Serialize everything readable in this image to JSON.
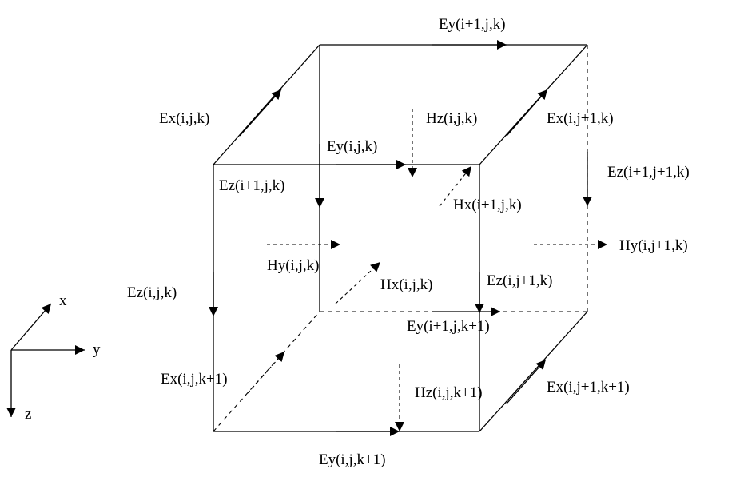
{
  "axes": {
    "x": "x",
    "y": "y",
    "z": "z"
  },
  "labels": {
    "ey_i1_j_k": "Ey(i+1,j,k)",
    "ex_i_j_k": "Ex(i,j,k)",
    "hz_i_j_k": "Hz(i,j,k)",
    "ex_i_j1_k": "Ex(i,j+1,k)",
    "ey_i_j_k": "Ey(i,j,k)",
    "ez_i1_j_k": "Ez(i+1,j,k)",
    "ez_i1_j1_k": "Ez(i+1,j+1,k)",
    "hx_i1_j_k": "Hx(i+1,j,k)",
    "hy_i_j1_k": "Hy(i,j+1,k)",
    "hy_i_j_k": "Hy(i,j,k)",
    "hx_i_j_k": "Hx(i,j,k)",
    "ez_i_j1_k": "Ez(i,j+1,k)",
    "ez_i_j_k": "Ez(i,j,k)",
    "ey_i1_j_k1": "Ey(i+1,j,k+1)",
    "ex_i_j_k1": "Ex(i,j,k+1)",
    "hz_i_j_k1": "Hz(i,j,k+1)",
    "ex_i_j1_k1": "Ex(i,j+1,k+1)",
    "ey_i_j_k1": "Ey(i,j,k+1)"
  },
  "colors": {
    "stroke": "#000000",
    "background": "#ffffff"
  }
}
